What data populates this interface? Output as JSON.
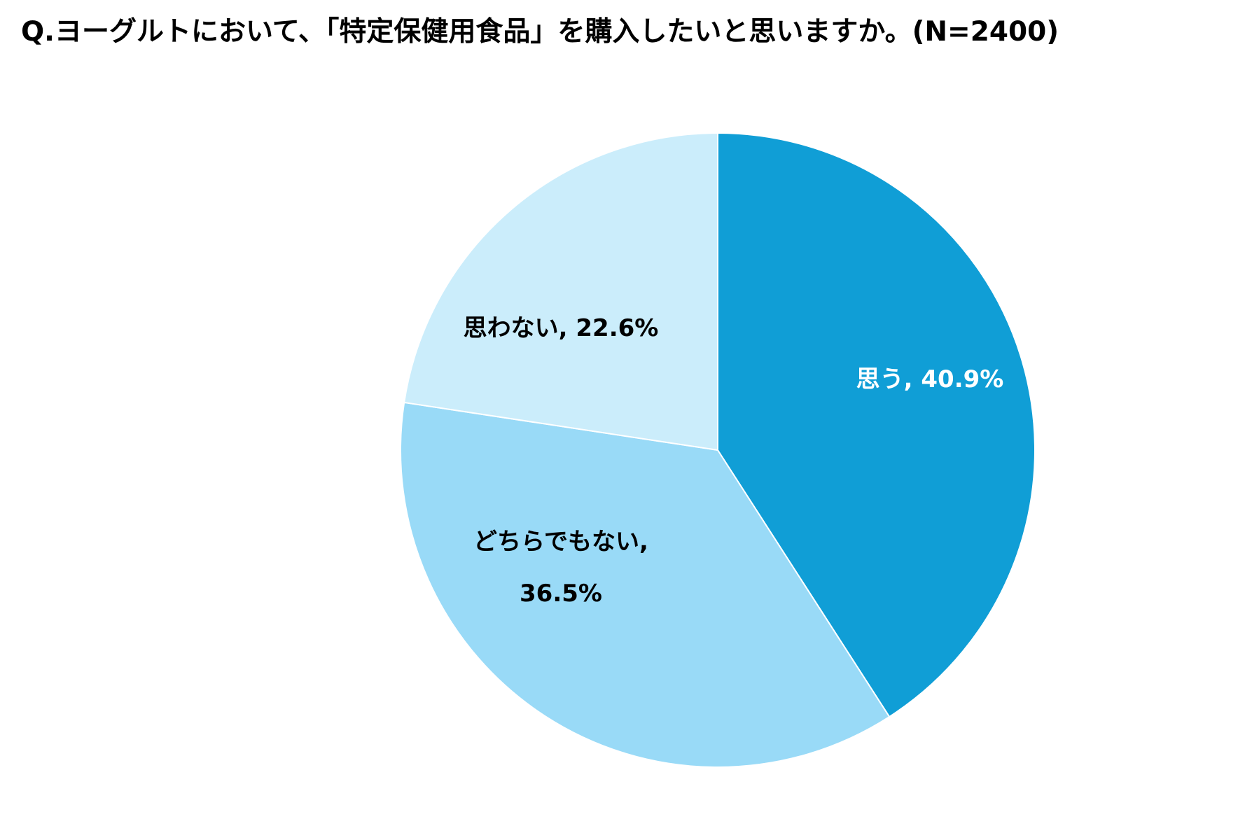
{
  "chart_data": {
    "type": "pie",
    "title": "Q.ヨーグルトにおいて、「特定保健用食品」を購入したいと思いますか。(N=2400)",
    "slices": [
      {
        "label": "思う",
        "value": 40.9,
        "display": "40.9%",
        "color": "#109ed6",
        "text_color": "#ffffff"
      },
      {
        "label": "どちらでもない",
        "value": 36.5,
        "display": "36.5%",
        "color": "#99daf7",
        "text_color": "#000000"
      },
      {
        "label": "思わない",
        "value": 22.6,
        "display": "22.6%",
        "color": "#cbedfb",
        "text_color": "#000000"
      }
    ],
    "start": "12 o'clock",
    "direction": "clockwise"
  }
}
